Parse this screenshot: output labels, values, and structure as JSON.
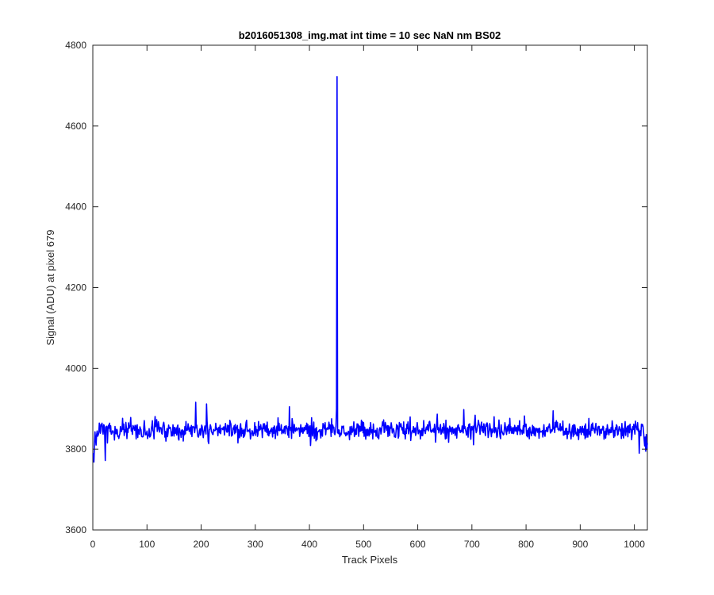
{
  "chart_data": {
    "type": "line",
    "title": "b2016051308_img.mat int time = 10 sec  NaN nm BS02",
    "xlabel": "Track Pixels",
    "ylabel": "Signal (ADU) at pixel 679",
    "xlim": [
      0,
      1024
    ],
    "ylim": [
      3600,
      4800
    ],
    "xticks": [
      0,
      100,
      200,
      300,
      400,
      500,
      600,
      700,
      800,
      900,
      1000
    ],
    "yticks": [
      3600,
      3800,
      4000,
      4200,
      4400,
      4600,
      4800
    ],
    "xtick_labels": [
      "0",
      "100",
      "200",
      "300",
      "400",
      "500",
      "600",
      "700",
      "800",
      "900",
      "1000"
    ],
    "ytick_labels": [
      "3600",
      "3800",
      "4000",
      "4200",
      "4400",
      "4600",
      "4800"
    ],
    "grid": false,
    "series": [
      {
        "color": "#0000ff",
        "x_start": 1,
        "x_end": 1024,
        "baseline_mean": 3848,
        "noise_std": 12,
        "start_values": [
          3790,
          3768,
          3815,
          3843,
          3825,
          3810,
          3835,
          3845,
          3832
        ],
        "end_values": [
          3842,
          3825,
          3808,
          3830,
          3795,
          3836,
          3800,
          3815
        ],
        "spikes": [
          {
            "x": 451,
            "y": 4722
          },
          {
            "x": 450,
            "y": 3900
          },
          {
            "x": 452,
            "y": 3840
          },
          {
            "x": 190,
            "y": 3916
          },
          {
            "x": 210,
            "y": 3912
          },
          {
            "x": 363,
            "y": 3905
          },
          {
            "x": 685,
            "y": 3898
          },
          {
            "x": 850,
            "y": 3895
          },
          {
            "x": 23,
            "y": 3772
          },
          {
            "x": 1009,
            "y": 3790
          }
        ]
      }
    ]
  },
  "colors": {
    "line": "#0000ff",
    "axes": "#262626",
    "background": "#ffffff"
  }
}
